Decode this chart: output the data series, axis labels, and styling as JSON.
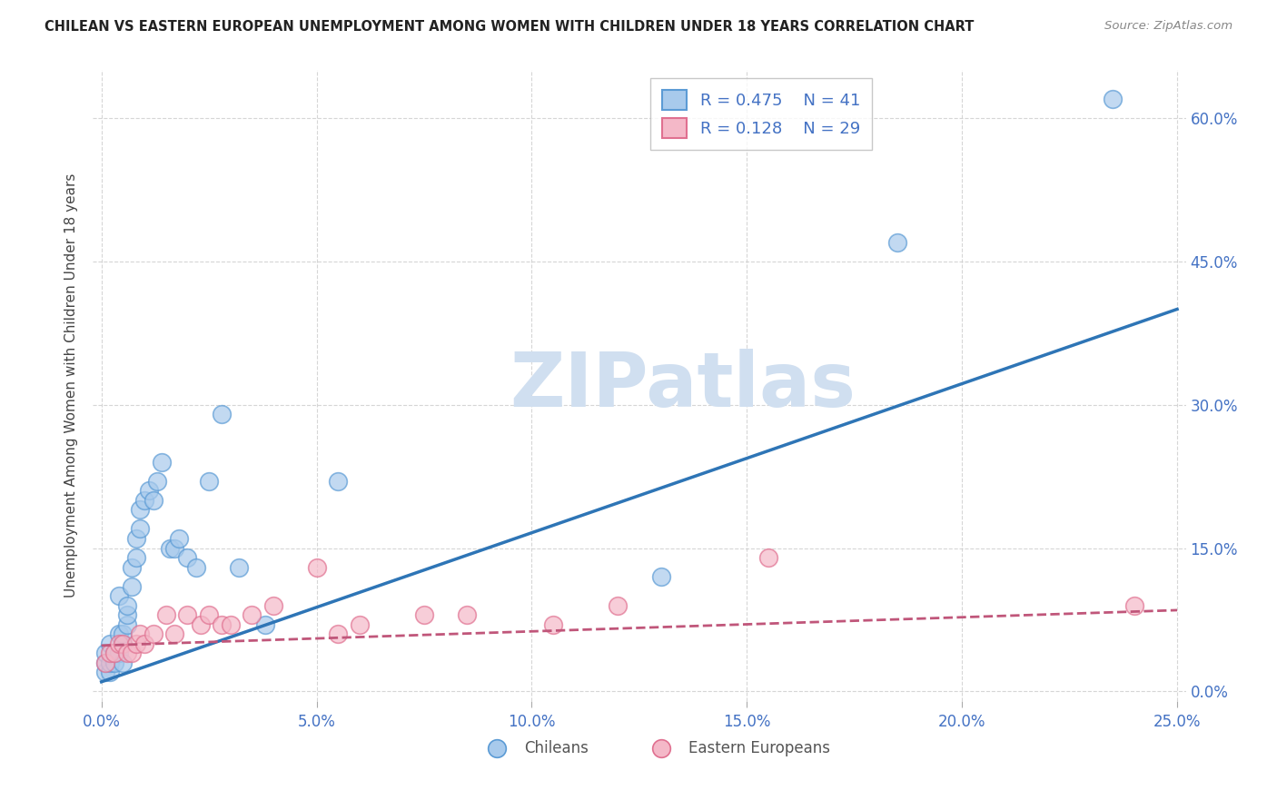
{
  "title": "CHILEAN VS EASTERN EUROPEAN UNEMPLOYMENT AMONG WOMEN WITH CHILDREN UNDER 18 YEARS CORRELATION CHART",
  "source": "Source: ZipAtlas.com",
  "ylabel": "Unemployment Among Women with Children Under 18 years",
  "xlim": [
    -0.002,
    0.252
  ],
  "ylim": [
    -0.01,
    0.65
  ],
  "xtick_values": [
    0.0,
    0.05,
    0.1,
    0.15,
    0.2,
    0.25
  ],
  "xtick_labels": [
    "0.0%",
    "5.0%",
    "10.0%",
    "15.0%",
    "20.0%",
    "25.0%"
  ],
  "ytick_values": [
    0.0,
    0.15,
    0.3,
    0.45,
    0.6
  ],
  "ytick_labels": [
    "0.0%",
    "15.0%",
    "30.0%",
    "45.0%",
    "60.0%"
  ],
  "legend_r1": "R = 0.475",
  "legend_n1": "N = 41",
  "legend_r2": "R = 0.128",
  "legend_n2": "N = 29",
  "blue_scatter_color": "#A8CAEC",
  "blue_edge_color": "#5B9BD5",
  "pink_scatter_color": "#F4B8C8",
  "pink_edge_color": "#E07090",
  "blue_line_color": "#2E75B6",
  "pink_line_color": "#C0567A",
  "watermark_color": "#D0DFF0",
  "grid_color": "#CCCCCC",
  "bg_color": "#FFFFFF",
  "title_color": "#222222",
  "source_color": "#888888",
  "tick_color": "#4472C4",
  "ylabel_color": "#444444",
  "bottom_legend_color": "#555555",
  "chilean_x": [
    0.001,
    0.001,
    0.001,
    0.002,
    0.002,
    0.002,
    0.003,
    0.003,
    0.004,
    0.004,
    0.004,
    0.005,
    0.005,
    0.005,
    0.006,
    0.006,
    0.006,
    0.007,
    0.007,
    0.008,
    0.008,
    0.009,
    0.009,
    0.01,
    0.011,
    0.012,
    0.013,
    0.014,
    0.016,
    0.017,
    0.018,
    0.02,
    0.022,
    0.025,
    0.028,
    0.032,
    0.038,
    0.055,
    0.13,
    0.185,
    0.235
  ],
  "chilean_y": [
    0.02,
    0.03,
    0.04,
    0.02,
    0.03,
    0.05,
    0.03,
    0.04,
    0.04,
    0.06,
    0.1,
    0.03,
    0.05,
    0.06,
    0.07,
    0.08,
    0.09,
    0.11,
    0.13,
    0.14,
    0.16,
    0.17,
    0.19,
    0.2,
    0.21,
    0.2,
    0.22,
    0.24,
    0.15,
    0.15,
    0.16,
    0.14,
    0.13,
    0.22,
    0.29,
    0.13,
    0.07,
    0.22,
    0.12,
    0.47,
    0.62
  ],
  "eastern_x": [
    0.001,
    0.002,
    0.003,
    0.004,
    0.005,
    0.006,
    0.007,
    0.008,
    0.009,
    0.01,
    0.012,
    0.015,
    0.017,
    0.02,
    0.023,
    0.025,
    0.028,
    0.03,
    0.035,
    0.04,
    0.05,
    0.055,
    0.06,
    0.075,
    0.085,
    0.105,
    0.12,
    0.155,
    0.24
  ],
  "eastern_y": [
    0.03,
    0.04,
    0.04,
    0.05,
    0.05,
    0.04,
    0.04,
    0.05,
    0.06,
    0.05,
    0.06,
    0.08,
    0.06,
    0.08,
    0.07,
    0.08,
    0.07,
    0.07,
    0.08,
    0.09,
    0.13,
    0.06,
    0.07,
    0.08,
    0.08,
    0.07,
    0.09,
    0.14,
    0.09
  ],
  "blue_trend_x": [
    0.0,
    0.25
  ],
  "blue_trend_y": [
    0.01,
    0.4
  ],
  "pink_trend_x": [
    0.0,
    0.25
  ],
  "pink_trend_y": [
    0.048,
    0.085
  ]
}
